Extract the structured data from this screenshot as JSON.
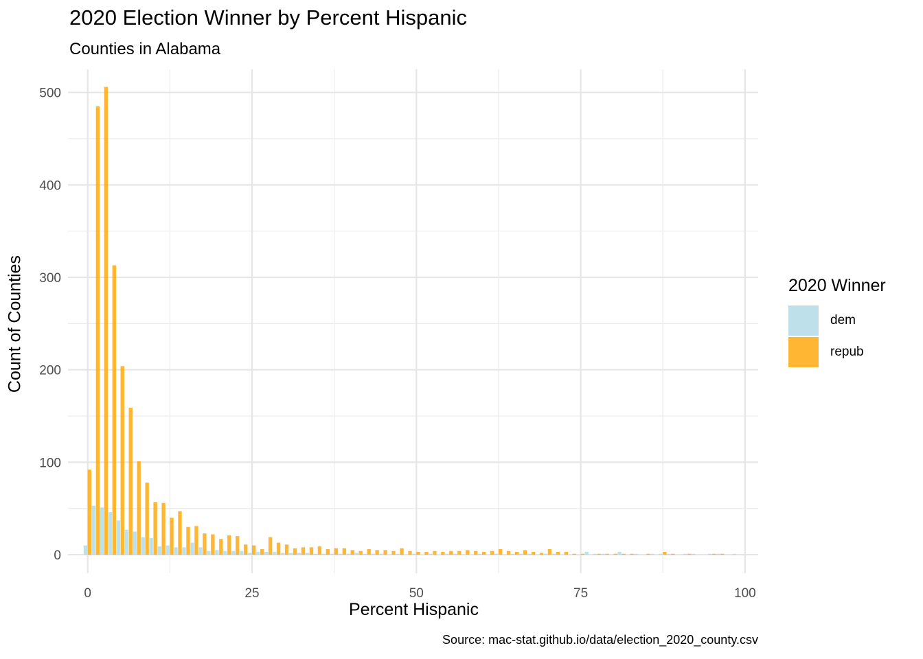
{
  "chart_data": {
    "type": "bar",
    "title": "2020 Election Winner by Percent Hispanic",
    "subtitle": "Counties in Alabama",
    "xlabel": "Percent Hispanic",
    "ylabel": "Count of Counties",
    "caption": "Source: mac-stat.github.io/data/election_2020_county.csv",
    "legend_title": "2020 Winner",
    "legend_position": "right",
    "grid": true,
    "xlim": [
      -3,
      102
    ],
    "ylim": [
      -20,
      525
    ],
    "x_ticks": [
      0,
      25,
      50,
      75,
      100
    ],
    "y_ticks": [
      0,
      100,
      200,
      300,
      400,
      500
    ],
    "bin_width": 1.25,
    "series": [
      {
        "name": "dem",
        "color": "#ADD8E6",
        "points": [
          [
            0,
            10
          ],
          [
            1.25,
            53
          ],
          [
            2.5,
            51
          ],
          [
            3.75,
            46
          ],
          [
            5,
            37
          ],
          [
            6.25,
            27
          ],
          [
            7.5,
            25
          ],
          [
            8.75,
            19
          ],
          [
            10,
            18
          ],
          [
            11.25,
            9
          ],
          [
            12.5,
            10
          ],
          [
            13.75,
            8
          ],
          [
            15,
            8
          ],
          [
            16.25,
            13
          ],
          [
            17.5,
            8
          ],
          [
            18.75,
            4
          ],
          [
            20,
            5
          ],
          [
            21.25,
            4
          ],
          [
            22.5,
            4
          ],
          [
            23.75,
            4
          ],
          [
            25,
            2
          ],
          [
            26.25,
            3
          ],
          [
            27.5,
            3
          ],
          [
            28.75,
            3
          ],
          [
            30,
            2
          ],
          [
            31.25,
            2
          ],
          [
            32.5,
            2
          ],
          [
            33.75,
            2
          ],
          [
            35,
            1
          ],
          [
            36.25,
            1
          ],
          [
            37.5,
            1
          ],
          [
            38.75,
            1
          ],
          [
            40,
            1
          ],
          [
            41.25,
            2
          ],
          [
            42.5,
            1
          ],
          [
            43.75,
            1
          ],
          [
            45,
            1
          ],
          [
            47.5,
            1
          ],
          [
            50,
            1
          ],
          [
            52.5,
            1
          ],
          [
            55,
            1
          ],
          [
            56.25,
            1
          ],
          [
            60,
            1
          ],
          [
            62.5,
            1
          ],
          [
            65,
            1
          ],
          [
            66.25,
            1
          ],
          [
            67.5,
            1
          ],
          [
            70,
            1
          ],
          [
            71.25,
            1
          ],
          [
            76.25,
            3
          ],
          [
            77.5,
            1
          ],
          [
            78.75,
            1
          ],
          [
            81.25,
            3
          ],
          [
            83.75,
            1
          ],
          [
            86.25,
            1
          ],
          [
            87.5,
            1
          ],
          [
            88.75,
            1
          ],
          [
            91.25,
            1
          ],
          [
            92.5,
            1
          ],
          [
            95,
            1
          ],
          [
            96.25,
            1
          ],
          [
            98.75,
            1
          ]
        ]
      },
      {
        "name": "repub",
        "color": "#FFA500",
        "points": [
          [
            0,
            92
          ],
          [
            1.25,
            485
          ],
          [
            2.5,
            506
          ],
          [
            3.75,
            313
          ],
          [
            5,
            204
          ],
          [
            6.25,
            159
          ],
          [
            7.5,
            101
          ],
          [
            8.75,
            78
          ],
          [
            10,
            57
          ],
          [
            11.25,
            56
          ],
          [
            12.5,
            40
          ],
          [
            13.75,
            47
          ],
          [
            15,
            30
          ],
          [
            16.25,
            31
          ],
          [
            17.5,
            23
          ],
          [
            18.75,
            22
          ],
          [
            20,
            17
          ],
          [
            21.25,
            21
          ],
          [
            22.5,
            20
          ],
          [
            23.75,
            11
          ],
          [
            25,
            10
          ],
          [
            26.25,
            6
          ],
          [
            27.5,
            19
          ],
          [
            28.75,
            13
          ],
          [
            30,
            11
          ],
          [
            31.25,
            7
          ],
          [
            32.5,
            8
          ],
          [
            33.75,
            8
          ],
          [
            35,
            9
          ],
          [
            36.25,
            6
          ],
          [
            37.5,
            7
          ],
          [
            38.75,
            7
          ],
          [
            40,
            5
          ],
          [
            41.25,
            4
          ],
          [
            42.5,
            6
          ],
          [
            43.75,
            5
          ],
          [
            45,
            5
          ],
          [
            46.25,
            4
          ],
          [
            47.5,
            7
          ],
          [
            48.75,
            4
          ],
          [
            50,
            3
          ],
          [
            51.25,
            3
          ],
          [
            52.5,
            4
          ],
          [
            53.75,
            3
          ],
          [
            55,
            4
          ],
          [
            56.25,
            4
          ],
          [
            57.5,
            5
          ],
          [
            58.75,
            4
          ],
          [
            60,
            3
          ],
          [
            61.25,
            4
          ],
          [
            62.5,
            6
          ],
          [
            63.75,
            4
          ],
          [
            65,
            3
          ],
          [
            66.25,
            5
          ],
          [
            67.5,
            3
          ],
          [
            68.75,
            2
          ],
          [
            70,
            6
          ],
          [
            71.25,
            3
          ],
          [
            72.5,
            3
          ],
          [
            73.75,
            1
          ],
          [
            75,
            1
          ],
          [
            77.5,
            1
          ],
          [
            78.75,
            1
          ],
          [
            80,
            1
          ],
          [
            81.25,
            1
          ],
          [
            82.5,
            1
          ],
          [
            85,
            1
          ],
          [
            87.5,
            3
          ],
          [
            88.75,
            1
          ],
          [
            91.25,
            1
          ],
          [
            95,
            1
          ],
          [
            96.25,
            1
          ]
        ]
      }
    ]
  }
}
